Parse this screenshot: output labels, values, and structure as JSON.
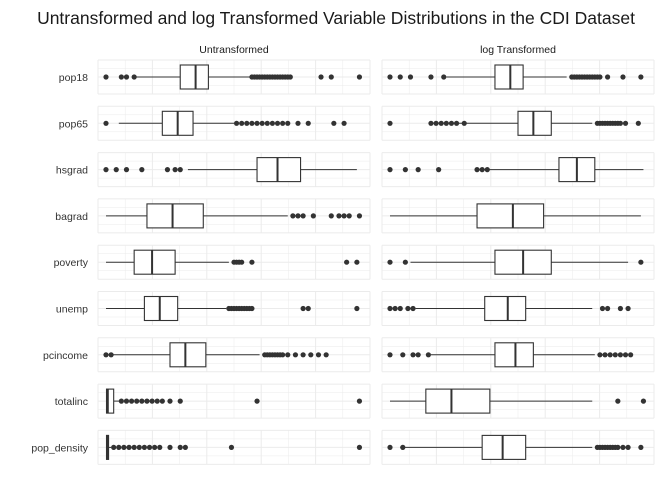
{
  "chart_data": {
    "type": "boxplot",
    "title": "Untransformed and log Transformed Variable Distributions in the CDI Dataset",
    "facets": [
      "Untransformed",
      "log Transformed"
    ],
    "variables": [
      "pop18",
      "pop65",
      "hsgrad",
      "bagrad",
      "poverty",
      "unemp",
      "pcincome",
      "totalinc",
      "pop_density"
    ],
    "scales": "each variable scaled to its own range within each panel (0 = min, 1 = max)",
    "grid": "on",
    "boxes": {
      "Untransformed": [
        {
          "variable": "pop18",
          "whisker_low": 0.11,
          "q1": 0.29,
          "median": 0.35,
          "q3": 0.4,
          "whisker_high": 0.57,
          "outliers": [
            0.0,
            0.06,
            0.08,
            0.11,
            0.57,
            0.58,
            0.59,
            0.6,
            0.61,
            0.62,
            0.63,
            0.64,
            0.65,
            0.66,
            0.67,
            0.68,
            0.69,
            0.7,
            0.71,
            0.72,
            0.84,
            0.88,
            0.99
          ]
        },
        {
          "variable": "pop65",
          "whisker_low": 0.05,
          "q1": 0.22,
          "median": 0.28,
          "q3": 0.34,
          "whisker_high": 0.5,
          "outliers": [
            0.0,
            0.51,
            0.53,
            0.55,
            0.57,
            0.59,
            0.61,
            0.63,
            0.65,
            0.67,
            0.69,
            0.71,
            0.75,
            0.79,
            0.89,
            0.93
          ]
        },
        {
          "variable": "hsgrad",
          "whisker_low": 0.32,
          "q1": 0.59,
          "median": 0.67,
          "q3": 0.76,
          "whisker_high": 0.98,
          "outliers": [
            0.0,
            0.04,
            0.08,
            0.14,
            0.24,
            0.27,
            0.29
          ]
        },
        {
          "variable": "bagrad",
          "whisker_low": 0.0,
          "q1": 0.16,
          "median": 0.26,
          "q3": 0.38,
          "whisker_high": 0.71,
          "outliers": [
            0.73,
            0.75,
            0.77,
            0.81,
            0.88,
            0.91,
            0.93,
            0.95,
            0.99
          ]
        },
        {
          "variable": "poverty",
          "whisker_low": 0.0,
          "q1": 0.11,
          "median": 0.18,
          "q3": 0.27,
          "whisker_high": 0.48,
          "outliers": [
            0.5,
            0.51,
            0.52,
            0.53,
            0.57,
            0.94,
            0.98
          ]
        },
        {
          "variable": "unemp",
          "whisker_low": 0.0,
          "q1": 0.15,
          "median": 0.21,
          "q3": 0.28,
          "whisker_high": 0.47,
          "outliers": [
            0.48,
            0.49,
            0.5,
            0.51,
            0.52,
            0.53,
            0.54,
            0.55,
            0.56,
            0.57,
            0.77,
            0.79,
            0.98
          ]
        },
        {
          "variable": "pcincome",
          "whisker_low": 0.02,
          "q1": 0.25,
          "median": 0.31,
          "q3": 0.39,
          "whisker_high": 0.6,
          "outliers": [
            0.0,
            0.02,
            0.62,
            0.63,
            0.64,
            0.65,
            0.66,
            0.67,
            0.68,
            0.69,
            0.71,
            0.74,
            0.77,
            0.8,
            0.83,
            0.86
          ]
        },
        {
          "variable": "totalinc",
          "whisker_low": 0.0,
          "q1": 0.002,
          "median": 0.007,
          "q3": 0.03,
          "whisker_high": 0.06,
          "outliers": [
            0.06,
            0.08,
            0.1,
            0.12,
            0.14,
            0.16,
            0.18,
            0.2,
            0.22,
            0.25,
            0.29,
            0.59,
            0.99
          ]
        },
        {
          "variable": "pop_density",
          "whisker_low": 0.0,
          "q1": 0.002,
          "median": 0.006,
          "q3": 0.01,
          "whisker_high": 0.02,
          "outliers": [
            0.03,
            0.05,
            0.07,
            0.09,
            0.11,
            0.13,
            0.15,
            0.17,
            0.19,
            0.21,
            0.25,
            0.29,
            0.31,
            0.49,
            0.99
          ]
        }
      ],
      "log Transformed": [
        {
          "variable": "pop18",
          "whisker_low": 0.22,
          "q1": 0.41,
          "median": 0.47,
          "q3": 0.52,
          "whisker_high": 0.69,
          "outliers": [
            0.0,
            0.04,
            0.08,
            0.16,
            0.21,
            0.71,
            0.72,
            0.73,
            0.74,
            0.75,
            0.76,
            0.77,
            0.78,
            0.79,
            0.8,
            0.81,
            0.82,
            0.85,
            0.91,
            0.98
          ]
        },
        {
          "variable": "pop65",
          "whisker_low": 0.19,
          "q1": 0.5,
          "median": 0.56,
          "q3": 0.63,
          "whisker_high": 0.79,
          "outliers": [
            0.0,
            0.16,
            0.18,
            0.2,
            0.22,
            0.24,
            0.26,
            0.29,
            0.81,
            0.82,
            0.83,
            0.84,
            0.85,
            0.86,
            0.87,
            0.88,
            0.89,
            0.9,
            0.92,
            0.97
          ]
        },
        {
          "variable": "hsgrad",
          "whisker_low": 0.35,
          "q1": 0.66,
          "median": 0.73,
          "q3": 0.8,
          "whisker_high": 0.99,
          "outliers": [
            0.0,
            0.06,
            0.11,
            0.19,
            0.34,
            0.36,
            0.38
          ]
        },
        {
          "variable": "bagrad",
          "whisker_low": 0.0,
          "q1": 0.34,
          "median": 0.48,
          "q3": 0.6,
          "whisker_high": 0.98,
          "outliers": []
        },
        {
          "variable": "poverty",
          "whisker_low": 0.08,
          "q1": 0.41,
          "median": 0.52,
          "q3": 0.63,
          "whisker_high": 0.93,
          "outliers": [
            0.0,
            0.06,
            0.98
          ]
        },
        {
          "variable": "unemp",
          "whisker_low": 0.1,
          "q1": 0.37,
          "median": 0.46,
          "q3": 0.53,
          "whisker_high": 0.79,
          "outliers": [
            0.0,
            0.02,
            0.04,
            0.07,
            0.09,
            0.83,
            0.85,
            0.9,
            0.93
          ]
        },
        {
          "variable": "pcincome",
          "whisker_low": 0.16,
          "q1": 0.41,
          "median": 0.49,
          "q3": 0.56,
          "whisker_high": 0.8,
          "outliers": [
            0.0,
            0.05,
            0.09,
            0.11,
            0.15,
            0.82,
            0.84,
            0.86,
            0.88,
            0.9,
            0.92,
            0.94
          ]
        },
        {
          "variable": "totalinc",
          "whisker_low": 0.0,
          "q1": 0.14,
          "median": 0.24,
          "q3": 0.39,
          "whisker_high": 0.79,
          "outliers": [
            0.89,
            0.99
          ]
        },
        {
          "variable": "pop_density",
          "whisker_low": 0.04,
          "q1": 0.36,
          "median": 0.44,
          "q3": 0.53,
          "whisker_high": 0.79,
          "outliers": [
            0.0,
            0.05,
            0.81,
            0.82,
            0.83,
            0.84,
            0.85,
            0.86,
            0.87,
            0.88,
            0.89,
            0.91,
            0.93,
            0.98
          ]
        }
      ]
    },
    "colors": {
      "background": "#ffffff",
      "grid": "#ebebeb",
      "box_stroke": "#333333",
      "outlier": "#333333",
      "text": "#1a1a1a"
    }
  }
}
